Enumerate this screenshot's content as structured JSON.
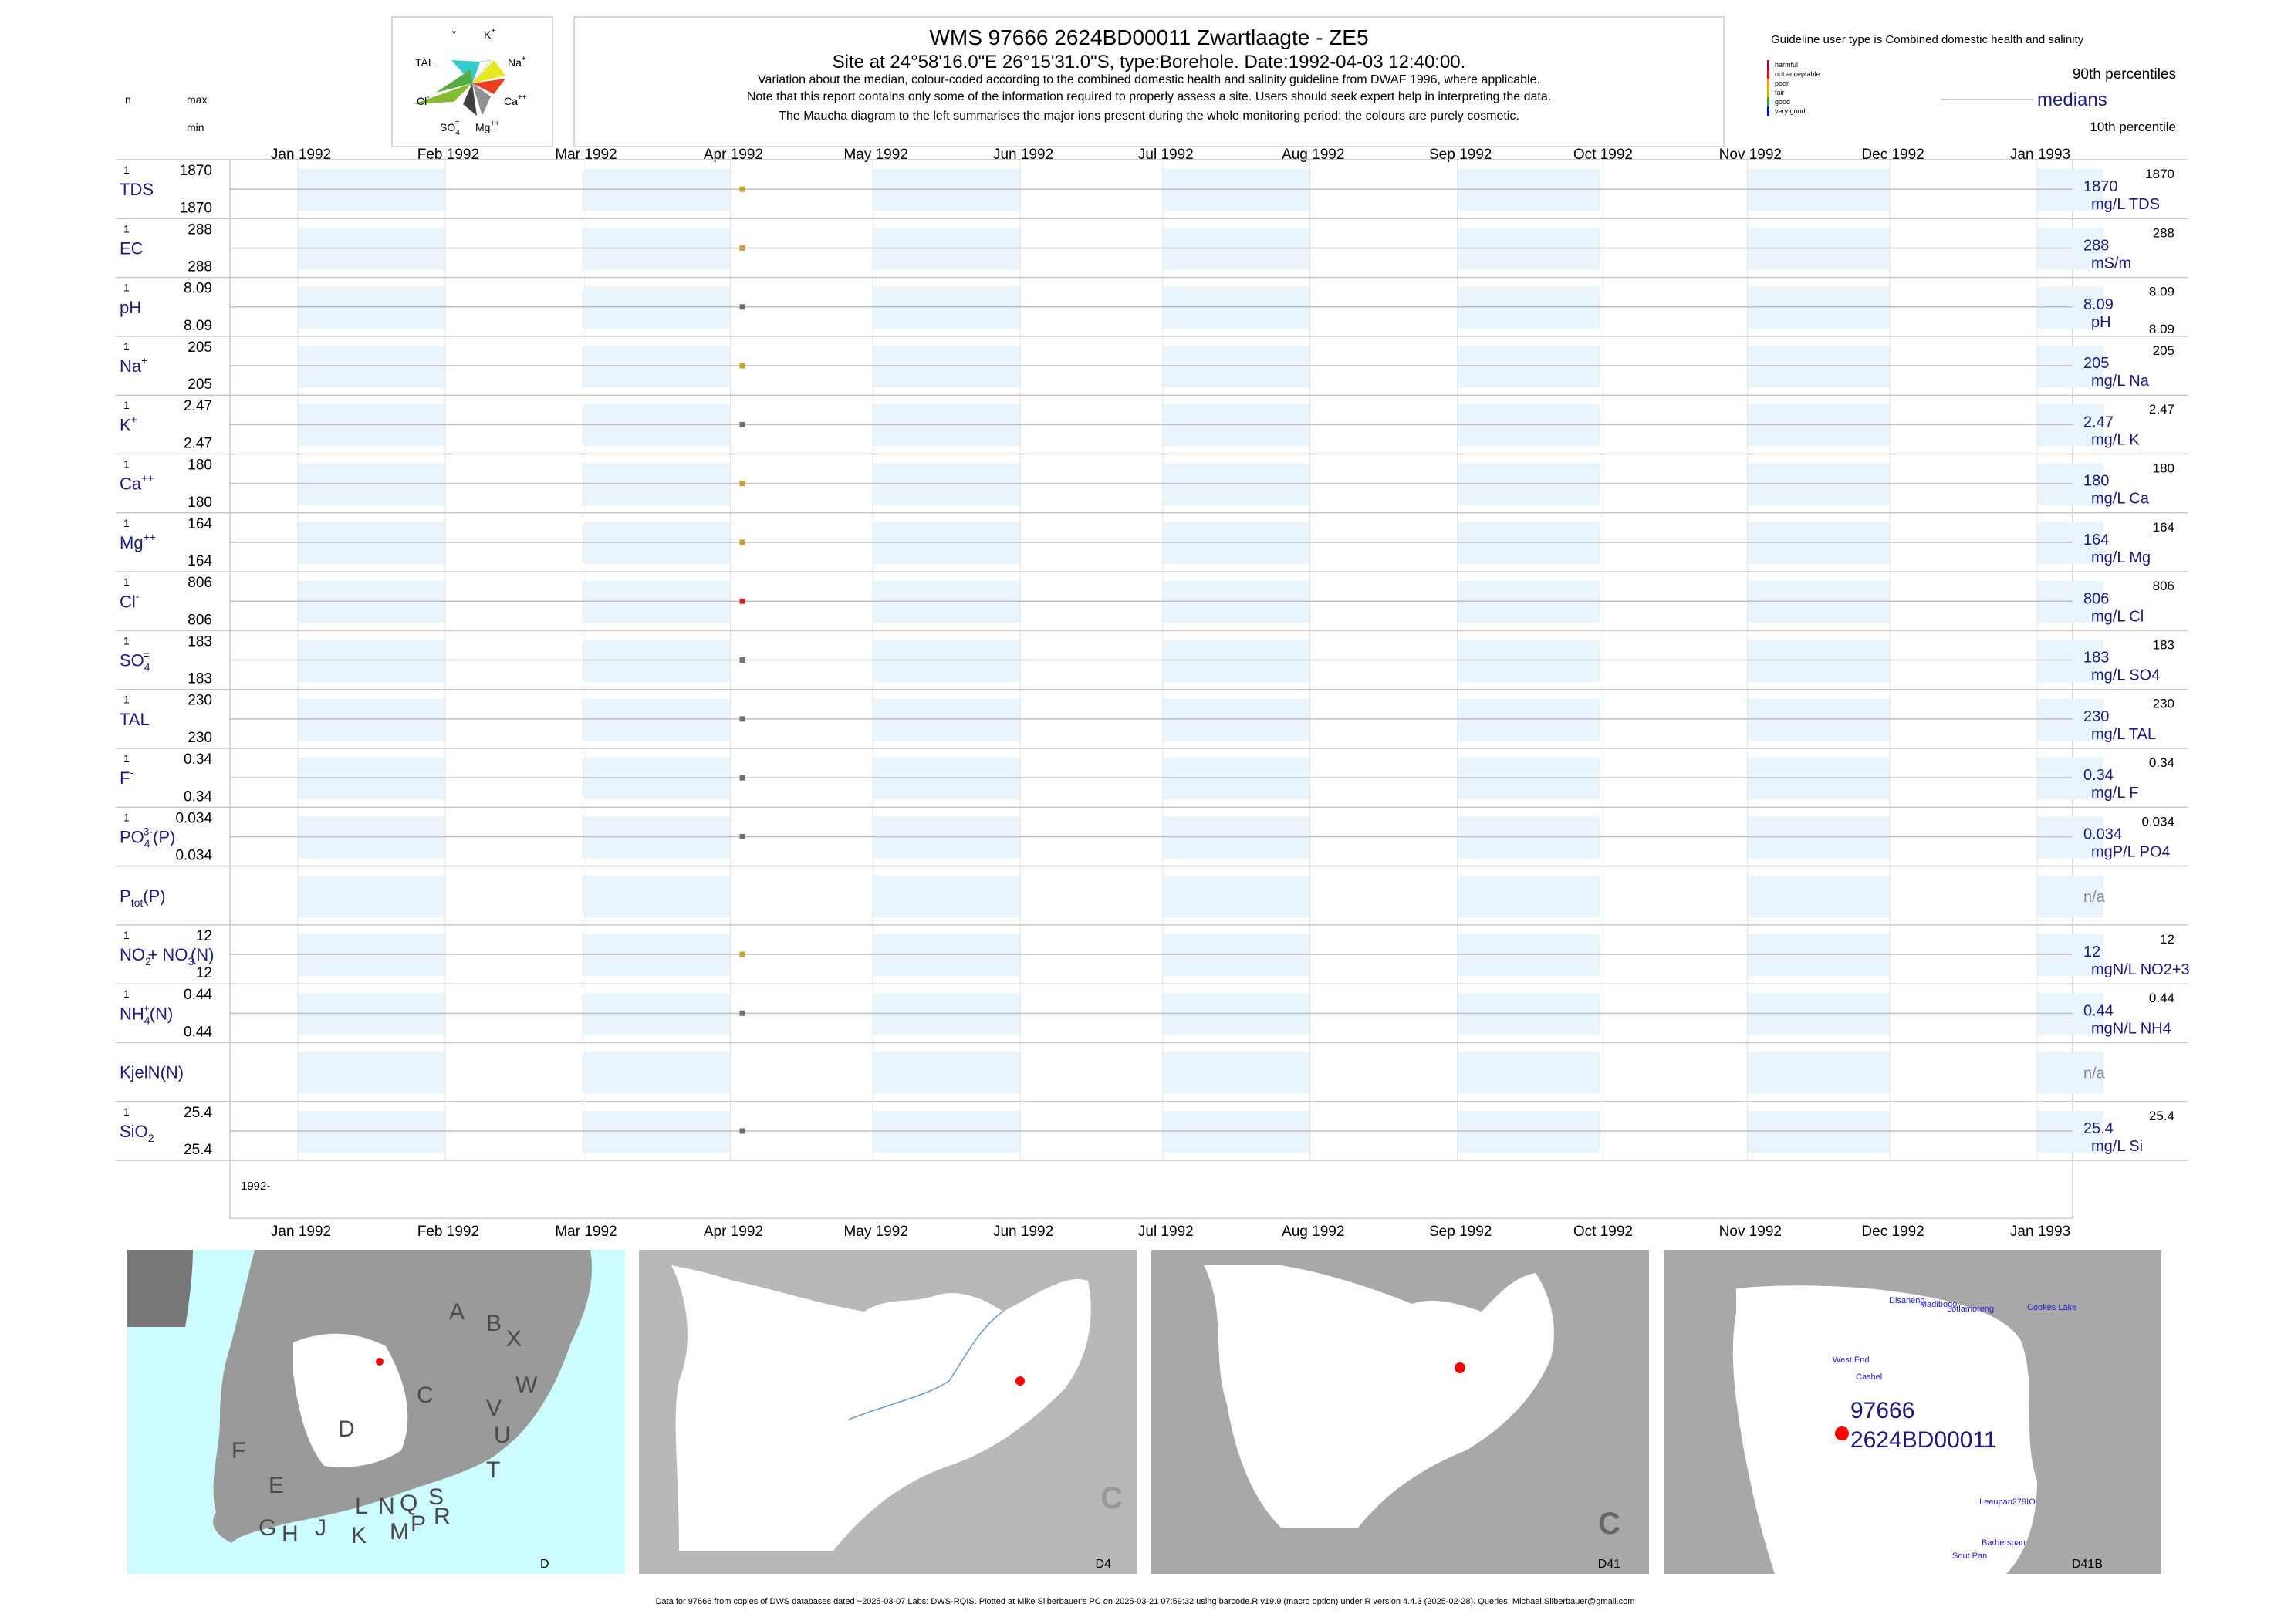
{
  "header": {
    "title": "WMS 97666 2624BD00011 Zwartlaagte - ZE5",
    "site_line": "Site at 24°58'16.0\"E 26°15'31.0\"S, type:Borehole. Date:1992-04-03 12:40:00.",
    "note1": "Variation about the median,  colour-coded according to the combined domestic health and salinity guideline from DWAF 1996, where applicable.",
    "note2": "Note that this report contains only some of the information required to properly assess a site. Users should seek expert help in interpreting the data.",
    "note3": "The Maucha diagram to the left summarises the major ions present during the whole monitoring period: the colours are purely cosmetic."
  },
  "left_legend": {
    "n": "n",
    "max": "max",
    "min": "min"
  },
  "maucha": {
    "labels": {
      "star": "*",
      "k": "K",
      "k_sup": "+",
      "na": "Na",
      "na_sup": "+",
      "tal": "TAL",
      "cl": "Cl",
      "cl_sup": "-",
      "ca": "Ca",
      "ca_sup": "++",
      "so4": "SO",
      "so4_sub": "4",
      "so4_sup": "=",
      "mg": "Mg",
      "mg_sup": "++"
    }
  },
  "guideline": {
    "title": "Guideline user type is Combined domestic health and salinity",
    "levels": [
      {
        "label": "harmful",
        "color": "#990066"
      },
      {
        "label": "not acceptable",
        "color": "#ff0000"
      },
      {
        "label": "poor",
        "color": "#ff9900"
      },
      {
        "label": "fair",
        "color": "#ddaa00"
      },
      {
        "label": "good",
        "color": "#33aa33"
      },
      {
        "label": "very good",
        "color": "#0000cc"
      }
    ],
    "p90": "90th percentiles",
    "medians": "medians",
    "p10": "10th percentile"
  },
  "axis": {
    "months": [
      "Jan 1992",
      "Feb 1992",
      "Mar 1992",
      "Apr 1992",
      "May 1992",
      "Jun 1992",
      "Jul 1992",
      "Aug 1992",
      "Sep 1992",
      "Oct 1992",
      "Nov 1992",
      "Dec 1992",
      "Jan 1993"
    ],
    "year_label": "1992-"
  },
  "chart_data": {
    "type": "scatter",
    "x_date": "1992-04-03",
    "xlim": [
      "1992-01-01",
      "1993-01-01"
    ],
    "series": [
      {
        "label": "TDS",
        "n": "1",
        "max": "1870",
        "min": "1870",
        "value": 1870,
        "median": "1870",
        "unit": "mg/L TDS",
        "p90": "1870",
        "p10": "",
        "color": "#c8a030"
      },
      {
        "label": "EC",
        "n": "1",
        "max": "288",
        "min": "288",
        "value": 288,
        "median": "288",
        "unit": "mS/m",
        "p90": "288",
        "p10": "",
        "color": "#c8a030"
      },
      {
        "label": "pH",
        "n": "1",
        "max": "8.09",
        "min": "8.09",
        "value": 8.09,
        "median": "8.09",
        "unit": "pH",
        "p90": "8.09",
        "p10": "8.09",
        "color": "#707070"
      },
      {
        "label": "Na",
        "sup": "+",
        "n": "1",
        "max": "205",
        "min": "205",
        "value": 205,
        "median": "205",
        "unit": "mg/L Na",
        "p90": "205",
        "p10": "",
        "color": "#c8a030"
      },
      {
        "label": "K",
        "sup": "+",
        "n": "1",
        "max": "2.47",
        "min": "2.47",
        "value": 2.47,
        "median": "2.47",
        "unit": "mg/L K",
        "p90": "2.47",
        "p10": "",
        "color": "#707070"
      },
      {
        "label": "Ca",
        "sup": "++",
        "n": "1",
        "max": "180",
        "min": "180",
        "value": 180,
        "median": "180",
        "unit": "mg/L Ca",
        "p90": "180",
        "p10": "",
        "color": "#c8a030"
      },
      {
        "label": "Mg",
        "sup": "++",
        "n": "1",
        "max": "164",
        "min": "164",
        "value": 164,
        "median": "164",
        "unit": "mg/L Mg",
        "p90": "164",
        "p10": "",
        "color": "#c8a030"
      },
      {
        "label": "Cl",
        "sup": "-",
        "n": "1",
        "max": "806",
        "min": "806",
        "value": 806,
        "median": "806",
        "unit": "mg/L Cl",
        "p90": "806",
        "p10": "",
        "color": "#e02020"
      },
      {
        "label": "SO",
        "sub": "4",
        "sup": "=",
        "n": "1",
        "max": "183",
        "min": "183",
        "value": 183,
        "median": "183",
        "unit": "mg/L SO4",
        "p90": "183",
        "p10": "",
        "color": "#707070"
      },
      {
        "label": "TAL",
        "n": "1",
        "max": "230",
        "min": "230",
        "value": 230,
        "median": "230",
        "unit": "mg/L TAL",
        "p90": "230",
        "p10": "",
        "color": "#707070"
      },
      {
        "label": "F",
        "sup": "-",
        "n": "1",
        "max": "0.34",
        "min": "0.34",
        "value": 0.34,
        "median": "0.34",
        "unit": "mg/L F",
        "p90": "0.34",
        "p10": "",
        "color": "#707070"
      },
      {
        "label": "PO",
        "sub": "4",
        "sup": "3-",
        "tail": "(P)",
        "n": "1",
        "max": "0.034",
        "min": "0.034",
        "value": 0.034,
        "median": "0.034",
        "unit": "mgP/L PO4",
        "p90": "0.034",
        "p10": "",
        "color": "#707070"
      },
      {
        "label": "P",
        "sub": "tot",
        "tail": "(P)",
        "n": "",
        "max": "",
        "min": "",
        "value": null,
        "median": "n/a",
        "unit": "",
        "p90": "",
        "p10": "",
        "color": "#707070"
      },
      {
        "label": "NO",
        "sub": "2",
        "sup": "-",
        "tail": "+ NO",
        "sub2": "3",
        "sup2": "-",
        "tail2": "(N)",
        "n": "1",
        "max": "12",
        "min": "12",
        "value": 12,
        "median": "12",
        "unit": "mgN/L NO2+3",
        "p90": "12",
        "p10": "",
        "color": "#c8a030"
      },
      {
        "label": "NH",
        "sub": "4",
        "sup": "+",
        "tail": "(N)",
        "n": "1",
        "max": "0.44",
        "min": "0.44",
        "value": 0.44,
        "median": "0.44",
        "unit": "mgN/L NH4",
        "p90": "0.44",
        "p10": "",
        "color": "#707070"
      },
      {
        "label": "KjelN(N)",
        "n": "",
        "max": "",
        "min": "",
        "value": null,
        "median": "n/a",
        "unit": "",
        "p90": "",
        "p10": "",
        "color": "#707070"
      },
      {
        "label": "SiO",
        "sub": "2",
        "n": "1",
        "max": "25.4",
        "min": "25.4",
        "value": 25.4,
        "median": "25.4",
        "unit": "mg/L Si",
        "p90": "25.4",
        "p10": "",
        "color": "#707070"
      }
    ]
  },
  "maps": [
    {
      "label": "D",
      "regions": [
        "A",
        "B",
        "X",
        "W",
        "C",
        "V",
        "U",
        "D",
        "T",
        "F",
        "E",
        "G",
        "H",
        "J",
        "K",
        "L",
        "N",
        "M",
        "Q",
        "P",
        "S",
        "R"
      ]
    },
    {
      "label": "D4",
      "regions": [
        "C"
      ]
    },
    {
      "label": "D41",
      "regions": [
        "C"
      ]
    },
    {
      "label": "D41B",
      "station_id": "97666",
      "station_code": "2624BD00011",
      "places": [
        "Disaneng",
        "Madibogo",
        "Lotlamoreng",
        "Cookes Lake",
        "West End",
        "Cashel",
        "Leeupan279IO",
        "Barberspan",
        "Sout Pan"
      ]
    }
  ],
  "footer": "Data for 97666 from copies of DWS databases dated ~2025-03-07 Labs: DWS-RQIS. Plotted at Mike Silberbauer's PC on 2025-03-21 07:59:32 using barcode.R v19.9 (macro option) under R version 4.4.3 (2025-02-28). Queries: Michael.Silberbauer@gmail.com"
}
